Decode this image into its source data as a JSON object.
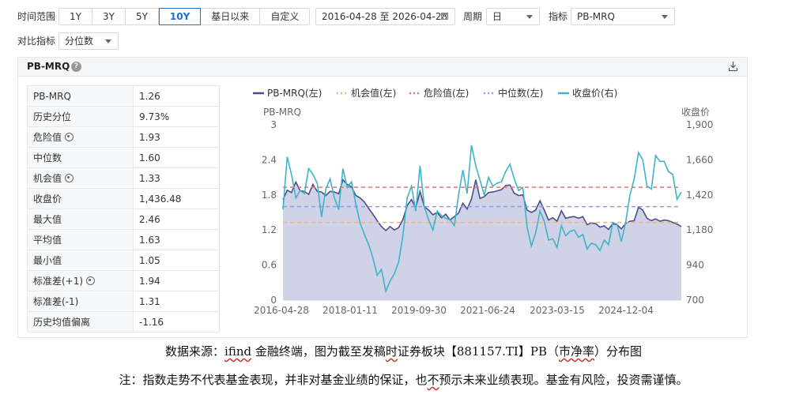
{
  "toolbar": {
    "range_label": "时间范围",
    "ranges": [
      "1Y",
      "3Y",
      "5Y",
      "10Y",
      "基日以来",
      "自定义"
    ],
    "active_range": "10Y",
    "date_range": "2016-04-28 至 2026-04-28",
    "period_label": "周期",
    "period_value": "日",
    "indicator_label": "指标",
    "indicator_value": "PB-MRQ",
    "compare_label": "对比指标",
    "compare_value": "分位数"
  },
  "panel": {
    "title": "PB-MRQ"
  },
  "stats": [
    {
      "key": "PB-MRQ",
      "value": "1.26",
      "gear": false
    },
    {
      "key": "历史分位",
      "value": "9.73%",
      "gear": false
    },
    {
      "key": "危险值",
      "value": "1.93",
      "gear": true
    },
    {
      "key": "中位数",
      "value": "1.60",
      "gear": false
    },
    {
      "key": "机会值",
      "value": "1.33",
      "gear": true
    },
    {
      "key": "收盘价",
      "value": "1,436.48",
      "gear": false
    },
    {
      "key": "最大值",
      "value": "2.46",
      "gear": false
    },
    {
      "key": "平均值",
      "value": "1.63",
      "gear": false
    },
    {
      "key": "最小值",
      "value": "1.05",
      "gear": false
    },
    {
      "key": "标准差(+1)",
      "value": "1.94",
      "gear": true
    },
    {
      "key": "标准差(-1)",
      "value": "1.31",
      "gear": false
    },
    {
      "key": "历史均值偏离",
      "value": "-1.16",
      "gear": false
    }
  ],
  "chart_data": {
    "type": "line",
    "legend": [
      "PB-MRQ(左)",
      "机会值(左)",
      "危险值(左)",
      "中位数(左)",
      "收盘价(右)"
    ],
    "left_axis_title": "PB-MRQ",
    "right_axis_title": "收盘价",
    "left_ticks": [
      "0",
      "0.6",
      "1.2",
      "1.8",
      "2.4",
      "3"
    ],
    "right_ticks": [
      "700",
      "940",
      "1,180",
      "1,420",
      "1,660",
      "1,900"
    ],
    "x_ticks": [
      "2016-04-28",
      "2018-01-11",
      "2019-09-30",
      "2021-06-24",
      "2023-03-15",
      "2024-12-04"
    ],
    "ylim_left": [
      0,
      3
    ],
    "ylim_right": [
      700,
      1900
    ],
    "lines": {
      "opportunity": 1.33,
      "danger": 1.93,
      "median": 1.6
    },
    "pb_series": [
      1.72,
      1.88,
      1.84,
      2.02,
      1.87,
      1.86,
      1.81,
      1.98,
      1.86,
      1.85,
      1.79,
      1.86,
      1.85,
      1.82,
      2.06,
      1.98,
      1.94,
      1.79,
      1.75,
      1.68,
      1.57,
      1.47,
      1.36,
      1.26,
      1.19,
      1.26,
      1.2,
      1.24,
      1.38,
      1.62,
      1.72,
      1.58,
      1.86,
      1.6,
      1.54,
      1.46,
      1.5,
      1.41,
      1.47,
      1.37,
      1.43,
      1.49,
      1.66,
      1.56,
      1.73,
      2.06,
      1.74,
      1.77,
      1.84,
      1.85,
      1.87,
      1.89,
      1.96,
      1.97,
      1.83,
      1.79,
      1.8,
      1.54,
      1.5,
      1.54,
      1.7,
      1.54,
      1.37,
      1.41,
      1.35,
      1.53,
      1.4,
      1.42,
      1.43,
      1.4,
      1.43,
      1.29,
      1.32,
      1.31,
      1.25,
      1.27,
      1.21,
      1.31,
      1.29,
      1.22,
      1.31,
      1.35,
      1.36,
      1.59,
      1.54,
      1.4,
      1.36,
      1.39,
      1.35,
      1.37,
      1.36,
      1.33,
      1.3,
      1.26
    ],
    "close_series": [
      1320,
      1680,
      1560,
      1400,
      1450,
      1430,
      1600,
      1560,
      1500,
      1270,
      1460,
      1530,
      1400,
      1320,
      1600,
      1470,
      1510,
      1360,
      1230,
      1150,
      1080,
      990,
      870,
      910,
      760,
      830,
      880,
      960,
      1140,
      1400,
      1480,
      1310,
      1620,
      1340,
      1250,
      1180,
      1310,
      1280,
      1260,
      1250,
      1210,
      1420,
      1590,
      1430,
      1760,
      1620,
      1520,
      1420,
      1540,
      1480,
      1500,
      1510,
      1580,
      1630,
      1530,
      1450,
      1470,
      1200,
      1070,
      1160,
      1310,
      1240,
      1110,
      1120,
      1060,
      1210,
      1140,
      1170,
      1180,
      1130,
      1150,
      1050,
      1090,
      1080,
      1040,
      1110,
      1080,
      1230,
      1220,
      1100,
      1230,
      1420,
      1530,
      1710,
      1660,
      1480,
      1460,
      1690,
      1650,
      1650,
      1580,
      1560,
      1390,
      1440
    ]
  },
  "footer": {
    "source_prefix": "数据来源：",
    "source_app": "ifind",
    "source_mid": " 金融终端，图为截至发稿",
    "source_time": "时",
    "source_mid2": "证券板块【881157.TI】PB（",
    "source_pe": "市净率",
    "source_end": "）分布图",
    "note_prefix": "注：指数走势不代表基金表现，并非对基金业绩的保证，也",
    "note_no": "不",
    "note_end": "预示未来业绩表现。基金有风险，投资需谨慎。"
  }
}
